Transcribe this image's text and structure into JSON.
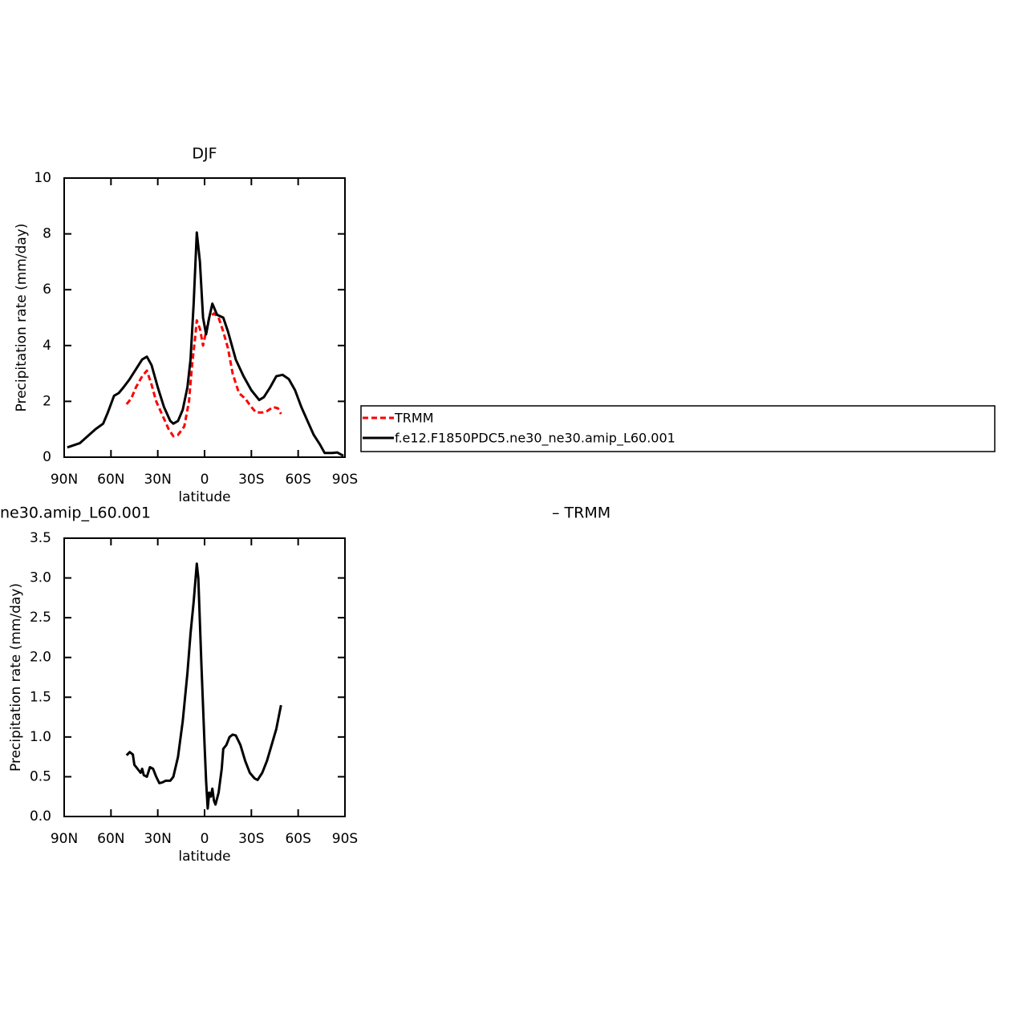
{
  "chart_data": [
    {
      "type": "line",
      "title": "DJF",
      "xlabel": "latitude",
      "ylabel": "Precipitation rate (mm/day)",
      "xlim": [
        90,
        -90
      ],
      "xticks": [
        {
          "value": 90,
          "label": "90N"
        },
        {
          "value": 60,
          "label": "60N"
        },
        {
          "value": 30,
          "label": "30N"
        },
        0,
        {
          "value": -30,
          "label": "30S"
        },
        {
          "value": -60,
          "label": "60S"
        },
        {
          "value": -90,
          "label": "90S"
        }
      ],
      "ylim": [
        0,
        10
      ],
      "yticks": [
        0,
        2,
        4,
        6,
        8,
        10
      ],
      "legend": true,
      "series": [
        {
          "name": "TRMM",
          "color": "#ff0000",
          "dashed": true,
          "x": [
            50,
            47,
            44,
            40,
            37,
            34,
            31,
            27,
            23,
            20,
            17,
            13,
            10,
            8,
            6,
            5,
            3,
            1,
            -1,
            -3,
            -6,
            -9,
            -12,
            -15,
            -18,
            -22,
            -26,
            -30,
            -33,
            -37,
            -40,
            -44,
            -47,
            -49
          ],
          "values": [
            1.9,
            2.1,
            2.5,
            2.9,
            3.1,
            2.6,
            2.0,
            1.5,
            1.0,
            0.75,
            0.8,
            1.1,
            2.0,
            3.3,
            4.3,
            4.9,
            4.6,
            4.0,
            4.5,
            5.0,
            5.15,
            5.0,
            4.5,
            3.9,
            3.0,
            2.3,
            2.1,
            1.8,
            1.6,
            1.6,
            1.65,
            1.8,
            1.75,
            1.55
          ]
        },
        {
          "name": "f.e12.F1850PDC5.ne30_ne30.amip_L60.001",
          "color": "#000000",
          "dashed": false,
          "x": [
            88,
            80,
            75,
            70,
            65,
            62,
            58,
            55,
            52,
            48,
            44,
            40,
            37,
            34,
            30,
            26,
            22,
            20,
            17,
            14,
            11,
            9,
            7,
            5,
            3,
            1,
            -1,
            -3,
            -5,
            -8,
            -12,
            -15,
            -20,
            -25,
            -30,
            -35,
            -38,
            -42,
            -46,
            -50,
            -54,
            -58,
            -62,
            -66,
            -70,
            -74,
            -77,
            -82,
            -85,
            -89
          ],
          "values": [
            0.35,
            0.5,
            0.75,
            1.0,
            1.2,
            1.6,
            2.2,
            2.3,
            2.5,
            2.8,
            3.15,
            3.5,
            3.6,
            3.3,
            2.5,
            1.8,
            1.3,
            1.2,
            1.3,
            1.7,
            2.5,
            3.5,
            5.5,
            8.05,
            7.0,
            5.0,
            4.4,
            5.0,
            5.5,
            5.1,
            5.0,
            4.5,
            3.5,
            2.9,
            2.4,
            2.05,
            2.15,
            2.5,
            2.9,
            2.95,
            2.8,
            2.4,
            1.8,
            1.3,
            0.8,
            0.45,
            0.15,
            0.15,
            0.17,
            0.05
          ]
        }
      ]
    },
    {
      "type": "line",
      "left_string": "ne30.amip_L60.001",
      "right_string": "– TRMM",
      "xlabel": "latitude",
      "ylabel": "Precipitation rate (mm/day)",
      "xlim": [
        90,
        -90
      ],
      "xticks": [
        {
          "value": 90,
          "label": "90N"
        },
        {
          "value": 60,
          "label": "60N"
        },
        {
          "value": 30,
          "label": "30N"
        },
        0,
        {
          "value": -30,
          "label": "30S"
        },
        {
          "value": -60,
          "label": "60S"
        },
        {
          "value": -90,
          "label": "90S"
        }
      ],
      "ylim": [
        0,
        3.5
      ],
      "yticks": [
        {
          "value": 0,
          "label": "0.0"
        },
        0.5,
        {
          "value": 1,
          "label": "1.0"
        },
        1.5,
        {
          "value": 2,
          "label": "2.0"
        },
        2.5,
        {
          "value": 3,
          "label": "3.0"
        },
        3.5
      ],
      "legend": false,
      "series": [
        {
          "color": "#000000",
          "dashed": false,
          "x": [
            50,
            48,
            46,
            45,
            43,
            41,
            40,
            39,
            37,
            35,
            33,
            31,
            29,
            27,
            25,
            22,
            20,
            17,
            14,
            11,
            9,
            7,
            5,
            4,
            2,
            0,
            -1,
            -2,
            -3,
            -4,
            -5,
            -6,
            -7,
            -9,
            -11,
            -12,
            -14,
            -16,
            -18,
            -20,
            -23,
            -26,
            -29,
            -32,
            -34,
            -37,
            -40,
            -43,
            -46,
            -49
          ],
          "values": [
            0.77,
            0.81,
            0.78,
            0.65,
            0.6,
            0.55,
            0.6,
            0.52,
            0.5,
            0.62,
            0.6,
            0.5,
            0.42,
            0.43,
            0.45,
            0.45,
            0.5,
            0.75,
            1.2,
            1.8,
            2.3,
            2.7,
            3.18,
            3.0,
            1.9,
            0.9,
            0.45,
            0.1,
            0.3,
            0.25,
            0.35,
            0.2,
            0.15,
            0.3,
            0.6,
            0.85,
            0.9,
            1.0,
            1.03,
            1.02,
            0.9,
            0.7,
            0.55,
            0.48,
            0.46,
            0.55,
            0.7,
            0.9,
            1.1,
            1.4
          ]
        }
      ]
    }
  ]
}
